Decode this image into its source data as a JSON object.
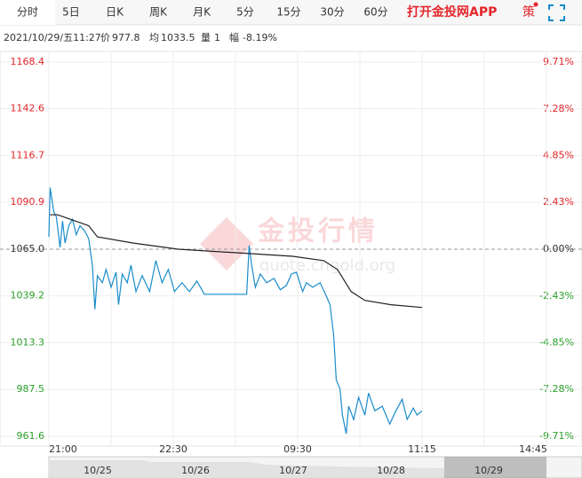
{
  "tabs": [
    "分时",
    "5日",
    "日K",
    "周K",
    "月K",
    "5分",
    "15分",
    "30分",
    "60分"
  ],
  "app_link": "打开金投网APP",
  "strategy": "策",
  "info": {
    "datetime": "2021/10/29/五11:27",
    "price_label": "价",
    "price": 977.8,
    "avg_label": "均",
    "avg": 1033.5,
    "volume_label": "量",
    "volume": 1,
    "change_label": "幅",
    "change": "-8.19%"
  },
  "watermark": {
    "brand": "金投行情",
    "url": "quote.cngold.org"
  },
  "navigator": [
    "10/25",
    "10/26",
    "10/27",
    "10/28",
    "10/29"
  ],
  "chart_data": {
    "type": "line",
    "xlim": [
      0,
      400
    ],
    "xticks": [
      {
        "value": 0,
        "label": "21:00"
      },
      {
        "value": 100,
        "label": "22:30"
      },
      {
        "value": 200,
        "label": "09:30"
      },
      {
        "value": 300,
        "label": "11:15"
      },
      {
        "value": 400,
        "label": "14:45"
      }
    ],
    "ylim": [
      961.6,
      1168.4
    ],
    "yticks": [
      {
        "value": 1168.4,
        "label": "1168.4"
      },
      1142.6,
      1116.7,
      1090.9,
      {
        "value": 1065.0,
        "label": "1065.0"
      },
      1039.2,
      1013.3,
      987.5,
      961.6
    ],
    "y2lim": [
      -9.71,
      9.71
    ],
    "y2ticks": [
      {
        "value": 9.71,
        "label": "9.71%"
      },
      {
        "value": 7.28,
        "label": "7.28%"
      },
      {
        "value": 4.85,
        "label": "4.85%"
      },
      {
        "value": 2.43,
        "label": "2.43%"
      },
      {
        "value": 0,
        "label": "0.00%"
      },
      {
        "value": -2.43,
        "label": "-2.43%"
      },
      {
        "value": -4.85,
        "label": "-4.85%"
      },
      {
        "value": -7.28,
        "label": "-7.28%"
      },
      {
        "value": -9.71,
        "label": "-9.71%"
      }
    ],
    "grid": true,
    "series": [
      {
        "color": "#1a8ccc",
        "x": [
          0,
          1,
          4,
          6,
          9,
          11,
          13,
          16,
          19,
          22,
          25,
          29,
          32,
          35,
          37,
          39,
          43,
          46,
          50,
          54,
          56,
          59,
          63,
          66,
          70,
          75,
          81,
          86,
          91,
          96,
          101,
          107,
          113,
          119,
          125,
          132,
          146,
          159,
          161,
          163,
          166,
          170,
          175,
          181,
          186,
          191,
          195,
          199,
          204,
          207,
          212,
          218,
          223,
          226,
          229,
          231,
          234,
          236,
          239,
          241,
          245,
          249,
          254,
          257,
          262,
          268,
          274,
          279,
          284,
          288,
          293,
          296,
          300
        ],
        "values": [
          1071.8,
          1099,
          1085.5,
          1083,
          1066,
          1080.6,
          1068.4,
          1078,
          1081.6,
          1073,
          1078,
          1074.8,
          1070.9,
          1056,
          1031.8,
          1050.4,
          1046.5,
          1053.8,
          1044,
          1052.3,
          1034.3,
          1051.3,
          1046.5,
          1056.2,
          1041.6,
          1050.4,
          1041.6,
          1058.7,
          1046.5,
          1053.8,
          1041.6,
          1046.5,
          1041.6,
          1047.4,
          1040.1,
          1040.1,
          1040.1,
          1040.1,
          1067,
          1056.2,
          1044,
          1051.3,
          1046.5,
          1048.9,
          1042.6,
          1045,
          1051.3,
          1052.3,
          1041.6,
          1046.5,
          1044,
          1046.5,
          1039.2,
          1034.3,
          1017.2,
          992.8,
          987.9,
          973.3,
          963,
          978.2,
          970.9,
          983.1,
          973.3,
          985.5,
          975.7,
          978.2,
          968.4,
          975.7,
          982.1,
          970.9,
          977.2,
          973.3,
          975.7
        ]
      },
      {
        "color": "#222222",
        "x": [
          1,
          7,
          32,
          39,
          68,
          104,
          161,
          196,
          221,
          232,
          243,
          254,
          275,
          300
        ],
        "values": [
          1084,
          1084,
          1078,
          1071.8,
          1068.4,
          1065,
          1062.6,
          1061.1,
          1058.7,
          1053.8,
          1041.6,
          1036.7,
          1034.3,
          1032.8
        ]
      }
    ]
  }
}
